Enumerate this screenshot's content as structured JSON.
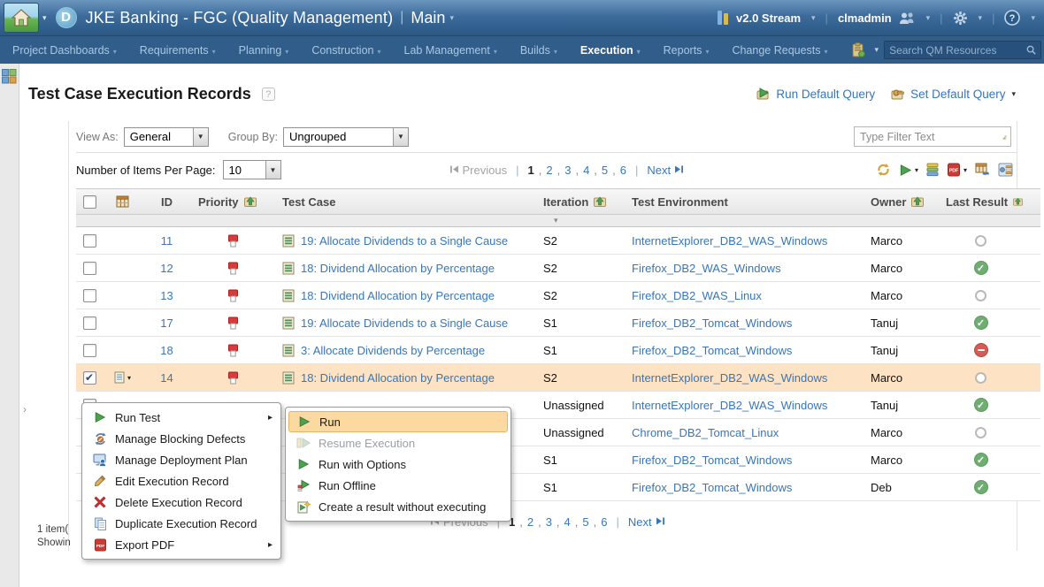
{
  "banner": {
    "title": "JKE Banking - FGC (Quality Management)",
    "separator": "|",
    "context_area": "Main",
    "stream": "v2.0 Stream",
    "user": "clmadmin"
  },
  "nav": {
    "items": [
      "Project Dashboards",
      "Requirements",
      "Planning",
      "Construction",
      "Lab Management",
      "Builds",
      "Execution",
      "Reports",
      "Change Requests"
    ],
    "active": "Execution",
    "search_placeholder": "Search QM Resources"
  },
  "page": {
    "title": "Test Case Execution Records",
    "help_glyph": "?",
    "run_default_query": "Run Default Query",
    "set_default_query": "Set Default Query"
  },
  "controls": {
    "view_as_label": "View As:",
    "view_as_value": "General",
    "group_by_label": "Group By:",
    "group_by_value": "Ungrouped",
    "filter_placeholder": "Type Filter Text",
    "items_per_page_label": "Number of Items Per Page:",
    "items_per_page_value": "10"
  },
  "pagination": {
    "previous": "Previous",
    "pages": [
      "1",
      "2",
      "3",
      "4",
      "5",
      "6"
    ],
    "current": "1",
    "next": "Next"
  },
  "toolbar": {
    "icons": [
      {
        "name": "refresh-icon",
        "caret": false
      },
      {
        "name": "run-icon",
        "caret": true
      },
      {
        "name": "list-view-icon",
        "caret": false
      },
      {
        "name": "export-pdf-icon",
        "caret": true
      },
      {
        "name": "export-table-icon",
        "caret": false
      },
      {
        "name": "configure-columns-icon",
        "caret": false
      }
    ]
  },
  "table": {
    "headers": {
      "id": "ID",
      "priority": "Priority",
      "test_case": "Test Case",
      "iteration": "Iteration",
      "test_environment": "Test Environment",
      "owner": "Owner",
      "last_result": "Last Result"
    },
    "rows": [
      {
        "id": "11",
        "priority": true,
        "test_case": "19: Allocate Dividends to a Single Cause",
        "iteration": "S2",
        "environment": "InternetExplorer_DB2_WAS_Windows",
        "owner": "Marco",
        "result": "none",
        "selected": false
      },
      {
        "id": "12",
        "priority": true,
        "test_case": "18: Dividend Allocation by Percentage",
        "iteration": "S2",
        "environment": "Firefox_DB2_WAS_Windows",
        "owner": "Marco",
        "result": "passed",
        "selected": false
      },
      {
        "id": "13",
        "priority": true,
        "test_case": "18: Dividend Allocation by Percentage",
        "iteration": "S2",
        "environment": "Firefox_DB2_WAS_Linux",
        "owner": "Marco",
        "result": "none",
        "selected": false
      },
      {
        "id": "17",
        "priority": true,
        "test_case": "19: Allocate Dividends to a Single Cause",
        "iteration": "S1",
        "environment": "Firefox_DB2_Tomcat_Windows",
        "owner": "Tanuj",
        "result": "passed",
        "selected": false
      },
      {
        "id": "18",
        "priority": true,
        "test_case": "3: Allocate Dividends by Percentage",
        "iteration": "S1",
        "environment": "Firefox_DB2_Tomcat_Windows",
        "owner": "Tanuj",
        "result": "blocked",
        "selected": false
      },
      {
        "id": "14",
        "priority": true,
        "test_case": "18: Dividend Allocation by Percentage",
        "iteration": "S2",
        "environment": "InternetExplorer_DB2_WAS_Windows",
        "owner": "Marco",
        "result": "none",
        "selected": true
      },
      {
        "id": "",
        "priority": false,
        "test_case": "",
        "iteration": "Unassigned",
        "environment": "InternetExplorer_DB2_WAS_Windows",
        "owner": "Tanuj",
        "result": "passed",
        "selected": false
      },
      {
        "id": "",
        "priority": false,
        "test_case": "",
        "iteration": "Unassigned",
        "environment": "Chrome_DB2_Tomcat_Linux",
        "owner": "Marco",
        "result": "none",
        "selected": false
      },
      {
        "id": "",
        "priority": false,
        "test_case": "",
        "iteration": "S1",
        "environment": "Firefox_DB2_Tomcat_Windows",
        "owner": "Marco",
        "result": "passed",
        "selected": false
      },
      {
        "id": "",
        "priority": false,
        "test_case": "",
        "iteration": "S1",
        "environment": "Firefox_DB2_Tomcat_Windows",
        "owner": "Deb",
        "result": "passed",
        "selected": false
      }
    ]
  },
  "status": {
    "line1": "1 item(",
    "line2": "Showin"
  },
  "context_menu": {
    "items": [
      {
        "label": "Run Test",
        "icon": "run-icon",
        "submenu": true,
        "disabled": false,
        "highlighted": false
      },
      {
        "label": "Manage Blocking Defects",
        "icon": "blocking-defects-icon",
        "submenu": false,
        "disabled": false,
        "highlighted": false
      },
      {
        "label": "Manage Deployment Plan",
        "icon": "deployment-plan-icon",
        "submenu": false,
        "disabled": false,
        "highlighted": false
      },
      {
        "label": "Edit Execution Record",
        "icon": "edit-icon",
        "submenu": false,
        "disabled": false,
        "highlighted": false
      },
      {
        "label": "Delete Execution Record",
        "icon": "delete-icon",
        "submenu": false,
        "disabled": false,
        "highlighted": false
      },
      {
        "label": "Duplicate Execution Record",
        "icon": "duplicate-icon",
        "submenu": false,
        "disabled": false,
        "highlighted": false
      },
      {
        "label": "Export PDF",
        "icon": "export-pdf-icon",
        "submenu": true,
        "disabled": false,
        "highlighted": false
      }
    ]
  },
  "submenu": {
    "items": [
      {
        "label": "Run",
        "icon": "run-icon",
        "disabled": false,
        "highlighted": true
      },
      {
        "label": "Resume Execution",
        "icon": "resume-execution-icon",
        "disabled": true,
        "highlighted": false
      },
      {
        "label": "Run with Options",
        "icon": "run-icon",
        "disabled": false,
        "highlighted": false
      },
      {
        "label": "Run Offline",
        "icon": "run-offline-icon",
        "disabled": false,
        "highlighted": false
      },
      {
        "label": "Create a result without executing",
        "icon": "create-result-icon",
        "disabled": false,
        "highlighted": false
      }
    ]
  },
  "colors": {
    "banner_blue": "#3c6b9b",
    "nav_blue": "#305d8a",
    "link_blue": "#3876b8",
    "selected_row": "#fde3c4",
    "menu_highlight": "#fcd9a0",
    "passed_green": "#6fae73",
    "blocked_red": "#d25b55",
    "priority_red": "#d93a3a"
  }
}
